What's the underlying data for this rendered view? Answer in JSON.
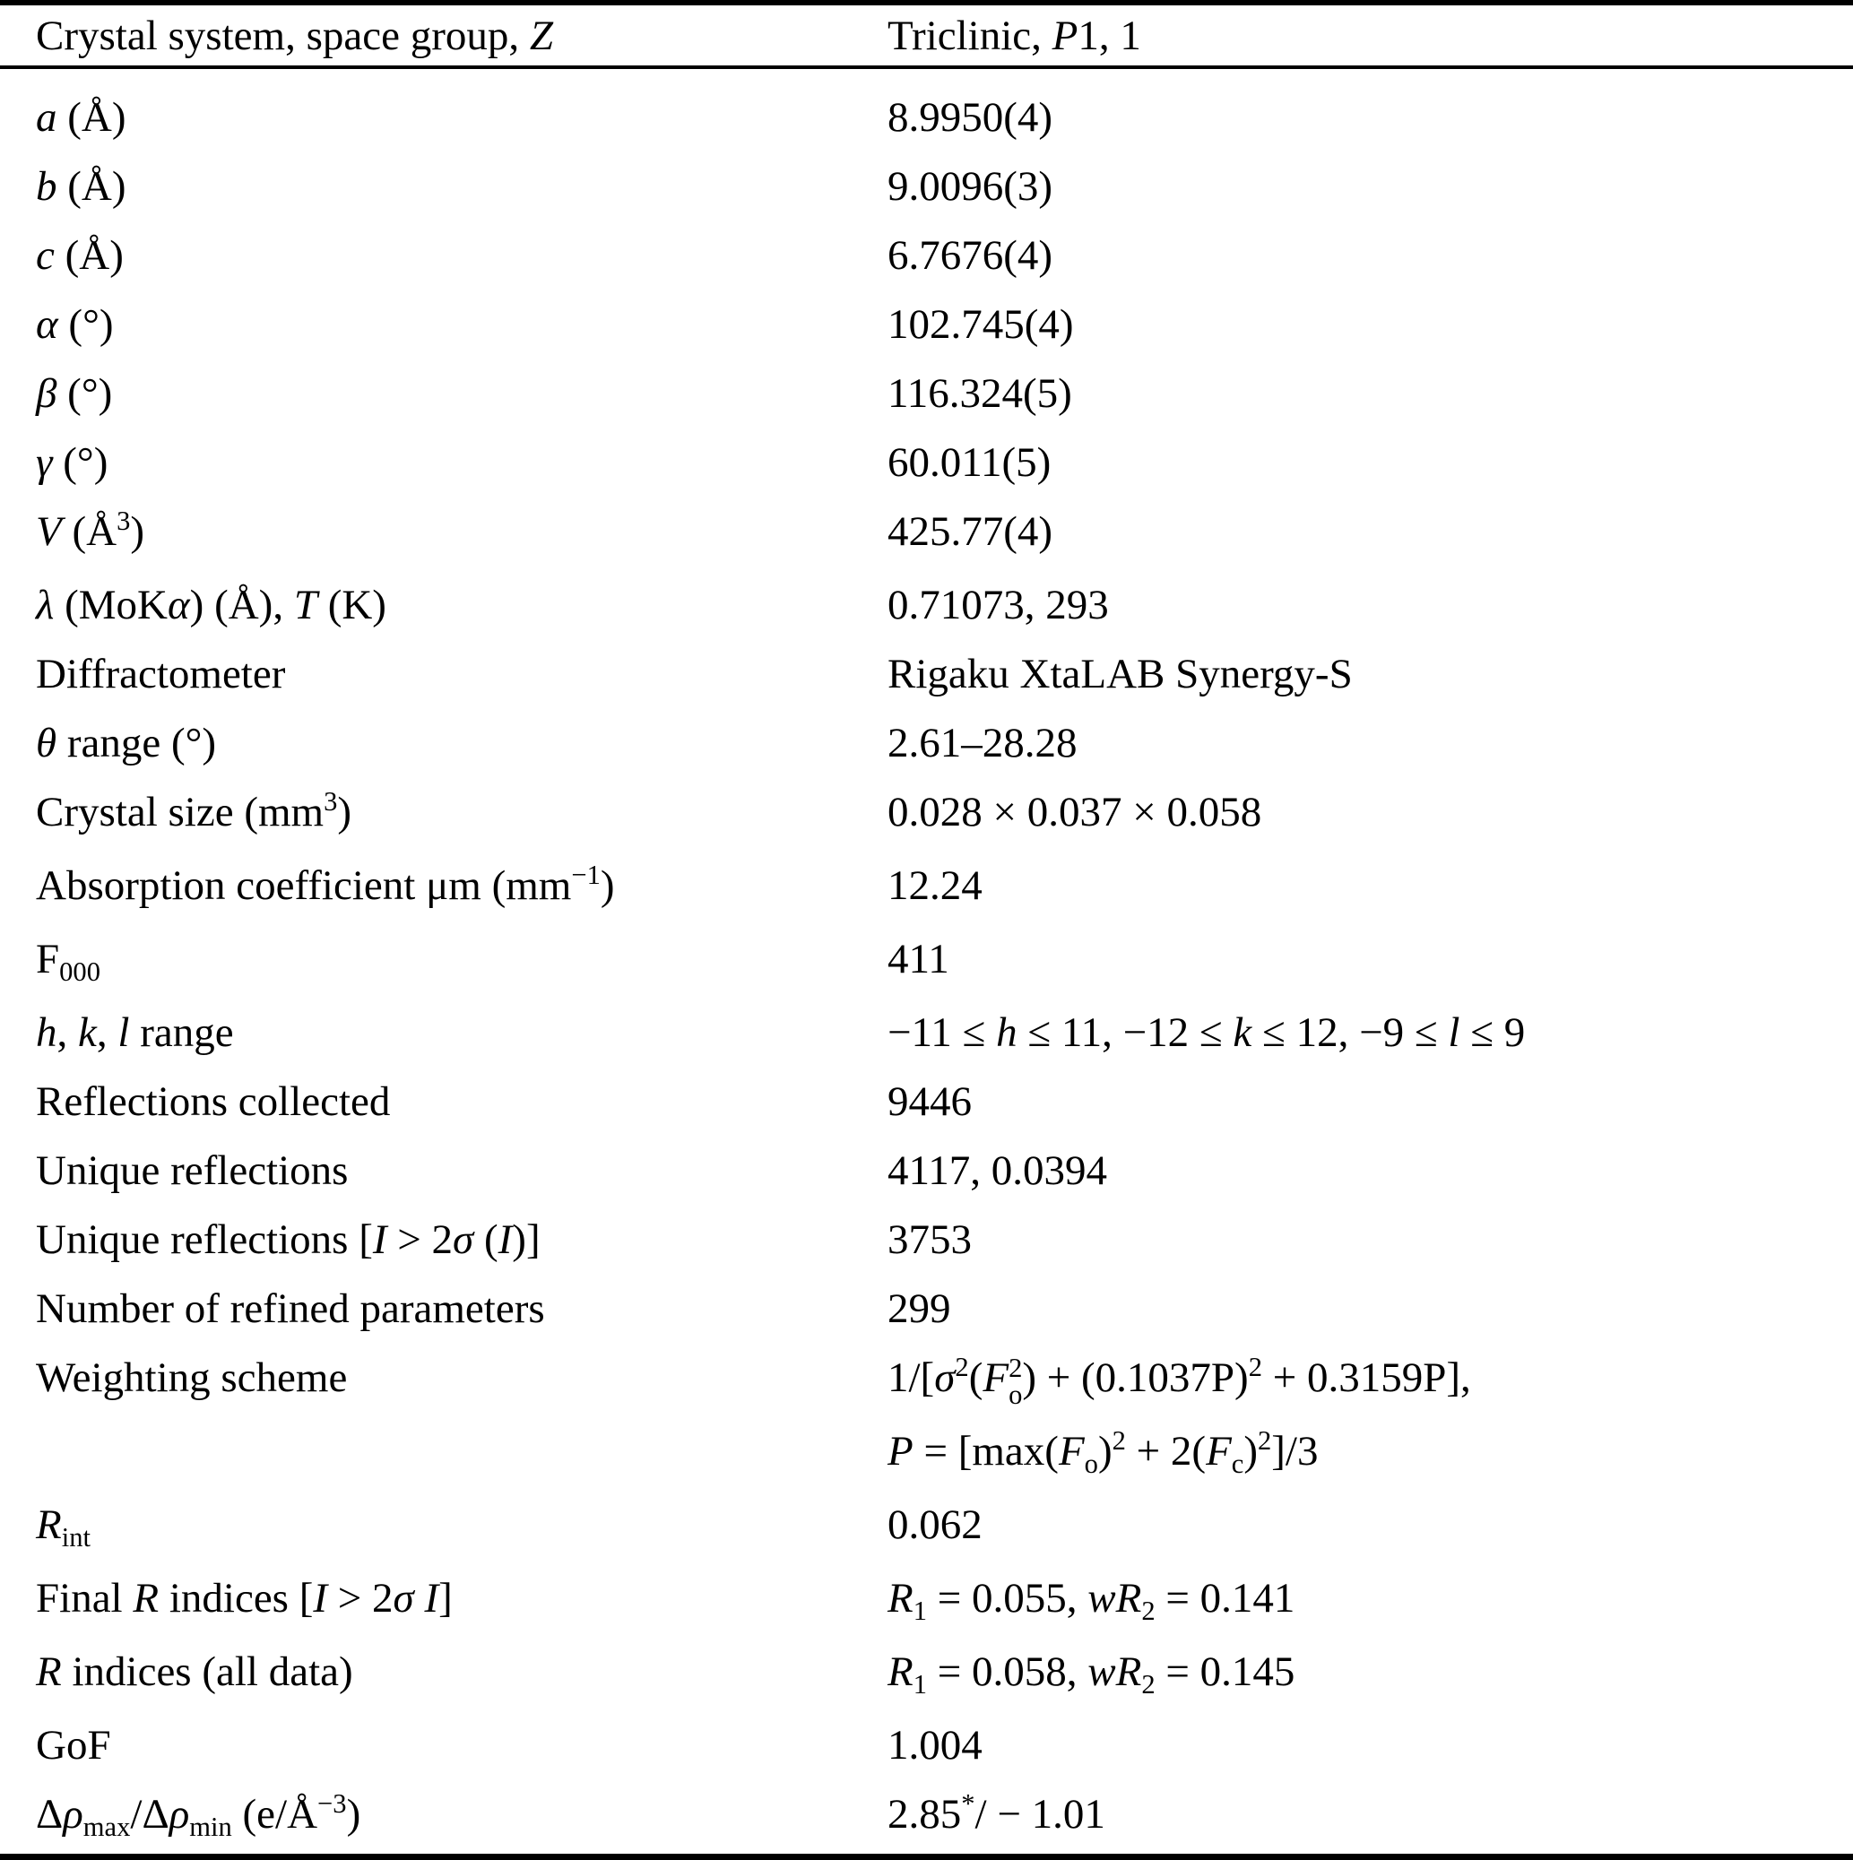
{
  "colors": {
    "text": "#000000",
    "rules": "#000000",
    "background": "#ffffff"
  },
  "table": {
    "header": {
      "label": [
        [
          "",
          "Crystal system, space group, "
        ],
        [
          "i",
          "Z"
        ]
      ],
      "value": [
        [
          "",
          "Triclinic, "
        ],
        [
          "i",
          "P"
        ],
        [
          "",
          "1, 1"
        ]
      ]
    },
    "rows": [
      {
        "label": [
          [
            "i",
            "a"
          ],
          [
            "",
            " (Å)"
          ]
        ],
        "value": [
          [
            [
              "",
              "8.9950(4)"
            ]
          ]
        ]
      },
      {
        "label": [
          [
            "i",
            "b"
          ],
          [
            "",
            " (Å)"
          ]
        ],
        "value": [
          [
            [
              "",
              "9.0096(3)"
            ]
          ]
        ]
      },
      {
        "label": [
          [
            "i",
            "c"
          ],
          [
            "",
            " (Å)"
          ]
        ],
        "value": [
          [
            [
              "",
              "6.7676(4)"
            ]
          ]
        ]
      },
      {
        "label": [
          [
            "i",
            "α"
          ],
          [
            "",
            " (°)"
          ]
        ],
        "value": [
          [
            [
              "",
              "102.745(4)"
            ]
          ]
        ]
      },
      {
        "label": [
          [
            "i",
            "β"
          ],
          [
            "",
            " (°)"
          ]
        ],
        "value": [
          [
            [
              "",
              "116.324(5)"
            ]
          ]
        ]
      },
      {
        "label": [
          [
            "i",
            "γ"
          ],
          [
            "",
            " (°)"
          ]
        ],
        "value": [
          [
            [
              "",
              "60.011(5)"
            ]
          ]
        ]
      },
      {
        "label": [
          [
            "i",
            "V"
          ],
          [
            "",
            " (Å"
          ],
          [
            "sup",
            "3"
          ],
          [
            "",
            ")"
          ]
        ],
        "value": [
          [
            [
              "",
              "425.77(4)"
            ]
          ]
        ]
      },
      {
        "label": [
          [
            "i",
            "λ"
          ],
          [
            "",
            " (MoK"
          ],
          [
            "i",
            "α"
          ],
          [
            "",
            ") (Å), "
          ],
          [
            "i",
            "T"
          ],
          [
            "",
            " (K)"
          ]
        ],
        "value": [
          [
            [
              "",
              "0.71073, 293"
            ]
          ]
        ]
      },
      {
        "label": [
          [
            "",
            "Diffractometer"
          ]
        ],
        "value": [
          [
            [
              "",
              "Rigaku XtaLAB Synergy-S"
            ]
          ]
        ]
      },
      {
        "label": [
          [
            "i",
            "θ"
          ],
          [
            "",
            " range (°)"
          ]
        ],
        "value": [
          [
            [
              "",
              "2.61–28.28"
            ]
          ]
        ]
      },
      {
        "label": [
          [
            "",
            "Crystal size (mm"
          ],
          [
            "sup",
            "3"
          ],
          [
            "",
            ")"
          ]
        ],
        "value": [
          [
            [
              "",
              "0.028 × 0.037 × 0.058"
            ]
          ]
        ]
      },
      {
        "label": [
          [
            "",
            "Absorption coefficient μm (mm"
          ],
          [
            "sup",
            "−1"
          ],
          [
            "",
            ")"
          ]
        ],
        "value": [
          [
            [
              "",
              "12.24"
            ]
          ]
        ]
      },
      {
        "label": [
          [
            "",
            "F"
          ],
          [
            "sub",
            "000"
          ]
        ],
        "value": [
          [
            [
              "",
              "411"
            ]
          ]
        ]
      },
      {
        "label": [
          [
            "i",
            "h"
          ],
          [
            "",
            ", "
          ],
          [
            "i",
            "k"
          ],
          [
            "",
            ", "
          ],
          [
            "i",
            "l"
          ],
          [
            "",
            " range"
          ]
        ],
        "value": [
          [
            [
              "",
              "−11 ≤ "
            ],
            [
              "i",
              "h"
            ],
            [
              "",
              " ≤ 11, −12 ≤ "
            ],
            [
              "i",
              "k"
            ],
            [
              "",
              " ≤ 12, −9 ≤ "
            ],
            [
              "i",
              "l"
            ],
            [
              "",
              " ≤ 9"
            ]
          ]
        ]
      },
      {
        "label": [
          [
            "",
            "Reflections collected"
          ]
        ],
        "value": [
          [
            [
              "",
              "9446"
            ]
          ]
        ]
      },
      {
        "label": [
          [
            "",
            "Unique reflections"
          ]
        ],
        "value": [
          [
            [
              "",
              "4117, 0.0394"
            ]
          ]
        ]
      },
      {
        "label": [
          [
            "",
            "Unique reflections ["
          ],
          [
            "i",
            "I"
          ],
          [
            "",
            " > 2"
          ],
          [
            "i",
            "σ"
          ],
          [
            "",
            " ("
          ],
          [
            "i",
            "I"
          ],
          [
            "",
            ")]"
          ]
        ],
        "value": [
          [
            [
              "",
              "3753"
            ]
          ]
        ]
      },
      {
        "label": [
          [
            "",
            "Number of refined parameters"
          ]
        ],
        "value": [
          [
            [
              "",
              "299"
            ]
          ]
        ]
      },
      {
        "label": [
          [
            "",
            "Weighting scheme"
          ]
        ],
        "value": [
          [
            [
              "",
              "1/["
            ],
            [
              "i",
              "σ"
            ],
            [
              "sup",
              "2"
            ],
            [
              "",
              "("
            ],
            [
              "i",
              "F"
            ],
            [
              "stack",
              [
                "2",
                "o"
              ]
            ],
            [
              "",
              ") + (0.1037P)"
            ],
            [
              "sup",
              "2"
            ],
            [
              "",
              " + 0.3159P],"
            ]
          ],
          [
            [
              "i",
              "P"
            ],
            [
              "",
              " = [max("
            ],
            [
              "i",
              "F"
            ],
            [
              "sub",
              "o"
            ],
            [
              "",
              ")"
            ],
            [
              "sup",
              "2"
            ],
            [
              "",
              " + 2("
            ],
            [
              "i",
              "F"
            ],
            [
              "sub",
              "c"
            ],
            [
              "",
              ")"
            ],
            [
              "sup",
              "2"
            ],
            [
              "",
              "]/3"
            ]
          ]
        ]
      },
      {
        "label": [
          [
            "i",
            "R"
          ],
          [
            "sub",
            "int"
          ]
        ],
        "value": [
          [
            [
              "",
              "0.062"
            ]
          ]
        ]
      },
      {
        "label": [
          [
            "",
            "Final "
          ],
          [
            "i",
            "R"
          ],
          [
            "",
            " indices ["
          ],
          [
            "i",
            "I"
          ],
          [
            "",
            " > 2"
          ],
          [
            "i",
            "σ"
          ],
          [
            "",
            " "
          ],
          [
            "i",
            "I"
          ],
          [
            "",
            "]"
          ]
        ],
        "value": [
          [
            [
              "i",
              "R"
            ],
            [
              "sub",
              "1"
            ],
            [
              "",
              " = 0.055, "
            ],
            [
              "i",
              "wR"
            ],
            [
              "sub",
              "2"
            ],
            [
              "",
              " = 0.141"
            ]
          ]
        ]
      },
      {
        "label": [
          [
            "i",
            "R"
          ],
          [
            "",
            " indices (all data)"
          ]
        ],
        "value": [
          [
            [
              "i",
              "R"
            ],
            [
              "sub",
              "1"
            ],
            [
              "",
              " = 0.058, "
            ],
            [
              "i",
              "wR"
            ],
            [
              "sub",
              "2"
            ],
            [
              "",
              " = 0.145"
            ]
          ]
        ]
      },
      {
        "label": [
          [
            "",
            "GoF"
          ]
        ],
        "value": [
          [
            [
              "",
              "1.004"
            ]
          ]
        ]
      },
      {
        "label": [
          [
            "",
            "Δ"
          ],
          [
            "i",
            "ρ"
          ],
          [
            "sub",
            "max"
          ],
          [
            "",
            "/Δ"
          ],
          [
            "i",
            "ρ"
          ],
          [
            "sub",
            "min"
          ],
          [
            "",
            " (e/Å"
          ],
          [
            "sup",
            "−3"
          ],
          [
            "",
            ")"
          ]
        ],
        "value": [
          [
            [
              "",
              "2.85"
            ],
            [
              "sup",
              "*"
            ],
            [
              "",
              "/ − 1.01"
            ]
          ]
        ]
      }
    ]
  }
}
